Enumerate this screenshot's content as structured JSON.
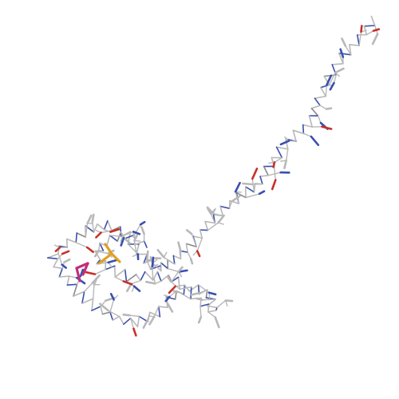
{
  "scene": {
    "subject": "protein-structure-stick-model",
    "background": "#ffffff",
    "colors": {
      "carbon": "#b8b8b8",
      "carbon_dark": "#8a8a8a",
      "nitrogen": "#3a4fb0",
      "oxygen": "#c8302a",
      "sulfur": "#e0a020",
      "ligand": "#c0307a"
    }
  }
}
